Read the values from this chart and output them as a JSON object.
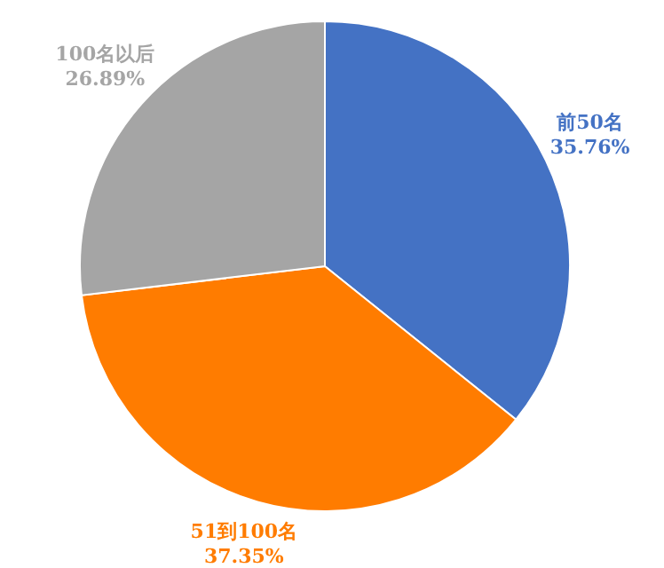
{
  "chart_data": {
    "type": "pie",
    "categories": [
      "前50名",
      "51到100名",
      "100名以后"
    ],
    "values": [
      35.76,
      37.35,
      26.89
    ],
    "colors": [
      "#4472c4",
      "#ff7c00",
      "#a5a5a5"
    ],
    "value_labels": [
      "35.76%",
      "37.35%",
      "26.89%"
    ]
  }
}
